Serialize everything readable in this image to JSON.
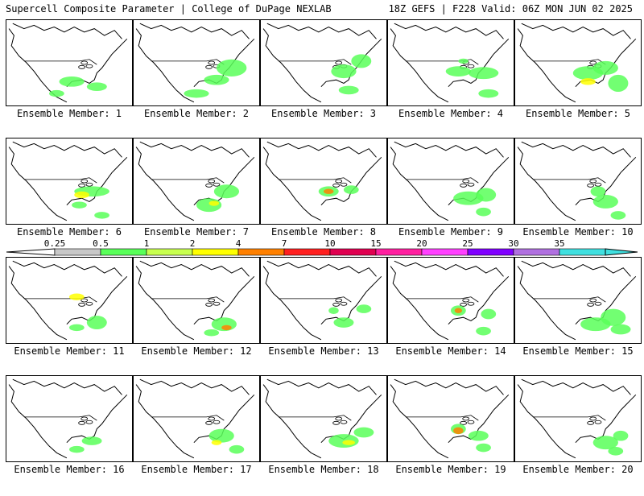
{
  "header": {
    "left": "Supercell Composite Parameter | College of DuPage NEXLAB",
    "right": "18Z GEFS | F228 Valid: 06Z MON JUN 02 2025"
  },
  "caption_prefix": "Ensemble Member:",
  "members": [
    {
      "label": "Ensemble Member: 1",
      "blobs": [
        [
          0.52,
          0.72,
          0.1,
          0.06,
          "#59ff59"
        ],
        [
          0.72,
          0.78,
          0.08,
          0.05,
          "#59ff59"
        ],
        [
          0.4,
          0.86,
          0.06,
          0.04,
          "#59ff59"
        ]
      ]
    },
    {
      "label": "Ensemble Member: 2",
      "blobs": [
        [
          0.78,
          0.56,
          0.12,
          0.1,
          "#59ff59"
        ],
        [
          0.66,
          0.7,
          0.1,
          0.06,
          "#59ff59"
        ],
        [
          0.5,
          0.86,
          0.1,
          0.05,
          "#59ff59"
        ]
      ]
    },
    {
      "label": "Ensemble Member: 3",
      "blobs": [
        [
          0.8,
          0.48,
          0.08,
          0.08,
          "#59ff59"
        ],
        [
          0.66,
          0.6,
          0.1,
          0.08,
          "#59ff59"
        ],
        [
          0.7,
          0.82,
          0.08,
          0.05,
          "#59ff59"
        ]
      ]
    },
    {
      "label": "Ensemble Member: 4",
      "blobs": [
        [
          0.56,
          0.6,
          0.1,
          0.06,
          "#59ff59"
        ],
        [
          0.76,
          0.62,
          0.12,
          0.07,
          "#59ff59"
        ],
        [
          0.8,
          0.86,
          0.08,
          0.05,
          "#59ff59"
        ],
        [
          0.6,
          0.48,
          0.04,
          0.03,
          "#59ff59"
        ]
      ]
    },
    {
      "label": "Ensemble Member: 5",
      "blobs": [
        [
          0.58,
          0.62,
          0.12,
          0.08,
          "#59ff59"
        ],
        [
          0.72,
          0.56,
          0.1,
          0.08,
          "#59ff59"
        ],
        [
          0.82,
          0.74,
          0.08,
          0.1,
          "#59ff59"
        ],
        [
          0.58,
          0.72,
          0.06,
          0.04,
          "#ffff00"
        ]
      ]
    },
    {
      "label": "Ensemble Member: 6",
      "blobs": [
        [
          0.68,
          0.62,
          0.14,
          0.06,
          "#59ff59"
        ],
        [
          0.6,
          0.66,
          0.06,
          0.04,
          "#ffff00"
        ],
        [
          0.58,
          0.78,
          0.06,
          0.04,
          "#59ff59"
        ],
        [
          0.76,
          0.9,
          0.06,
          0.04,
          "#59ff59"
        ]
      ]
    },
    {
      "label": "Ensemble Member: 7",
      "blobs": [
        [
          0.74,
          0.62,
          0.1,
          0.08,
          "#59ff59"
        ],
        [
          0.6,
          0.78,
          0.1,
          0.08,
          "#59ff59"
        ],
        [
          0.64,
          0.76,
          0.04,
          0.03,
          "#ffff00"
        ]
      ]
    },
    {
      "label": "Ensemble Member: 8",
      "blobs": [
        [
          0.54,
          0.62,
          0.08,
          0.06,
          "#59ff59"
        ],
        [
          0.54,
          0.62,
          0.04,
          0.03,
          "#ff8000"
        ],
        [
          0.72,
          0.6,
          0.06,
          0.05,
          "#59ff59"
        ]
      ]
    },
    {
      "label": "Ensemble Member: 9",
      "blobs": [
        [
          0.64,
          0.7,
          0.12,
          0.08,
          "#59ff59"
        ],
        [
          0.78,
          0.66,
          0.08,
          0.08,
          "#59ff59"
        ],
        [
          0.76,
          0.86,
          0.06,
          0.05,
          "#59ff59"
        ]
      ]
    },
    {
      "label": "Ensemble Member: 10",
      "blobs": [
        [
          0.66,
          0.62,
          0.06,
          0.06,
          "#59ff59"
        ],
        [
          0.72,
          0.74,
          0.1,
          0.08,
          "#59ff59"
        ],
        [
          0.82,
          0.9,
          0.06,
          0.05,
          "#59ff59"
        ]
      ]
    },
    {
      "label": "Ensemble Member: 11",
      "blobs": [
        [
          0.56,
          0.46,
          0.06,
          0.04,
          "#ffff00"
        ],
        [
          0.72,
          0.76,
          0.08,
          0.08,
          "#59ff59"
        ],
        [
          0.56,
          0.82,
          0.06,
          0.04,
          "#59ff59"
        ]
      ]
    },
    {
      "label": "Ensemble Member: 12",
      "blobs": [
        [
          0.72,
          0.78,
          0.1,
          0.08,
          "#59ff59"
        ],
        [
          0.74,
          0.82,
          0.04,
          0.03,
          "#ff8000"
        ],
        [
          0.62,
          0.88,
          0.06,
          0.04,
          "#59ff59"
        ]
      ]
    },
    {
      "label": "Ensemble Member: 13",
      "blobs": [
        [
          0.58,
          0.62,
          0.04,
          0.04,
          "#59ff59"
        ],
        [
          0.66,
          0.76,
          0.08,
          0.06,
          "#59ff59"
        ],
        [
          0.82,
          0.6,
          0.06,
          0.05,
          "#59ff59"
        ]
      ]
    },
    {
      "label": "Ensemble Member: 14",
      "blobs": [
        [
          0.56,
          0.62,
          0.06,
          0.06,
          "#59ff59"
        ],
        [
          0.56,
          0.62,
          0.03,
          0.03,
          "#ff8000"
        ],
        [
          0.8,
          0.66,
          0.06,
          0.06,
          "#59ff59"
        ],
        [
          0.76,
          0.86,
          0.06,
          0.05,
          "#59ff59"
        ]
      ]
    },
    {
      "label": "Ensemble Member: 15",
      "blobs": [
        [
          0.64,
          0.78,
          0.12,
          0.08,
          "#59ff59"
        ],
        [
          0.78,
          0.7,
          0.1,
          0.1,
          "#59ff59"
        ],
        [
          0.84,
          0.84,
          0.08,
          0.06,
          "#59ff59"
        ]
      ]
    },
    {
      "label": "Ensemble Member: 16",
      "blobs": [
        [
          0.68,
          0.76,
          0.08,
          0.05,
          "#59ff59"
        ],
        [
          0.56,
          0.86,
          0.06,
          0.04,
          "#59ff59"
        ]
      ]
    },
    {
      "label": "Ensemble Member: 17",
      "blobs": [
        [
          0.7,
          0.7,
          0.1,
          0.08,
          "#59ff59"
        ],
        [
          0.66,
          0.78,
          0.04,
          0.03,
          "#ffff00"
        ],
        [
          0.82,
          0.86,
          0.06,
          0.05,
          "#59ff59"
        ]
      ]
    },
    {
      "label": "Ensemble Member: 18",
      "blobs": [
        [
          0.66,
          0.76,
          0.12,
          0.08,
          "#59ff59"
        ],
        [
          0.7,
          0.78,
          0.05,
          0.03,
          "#ffff00"
        ],
        [
          0.82,
          0.66,
          0.08,
          0.06,
          "#59ff59"
        ]
      ]
    },
    {
      "label": "Ensemble Member: 19",
      "blobs": [
        [
          0.56,
          0.62,
          0.06,
          0.06,
          "#59ff59"
        ],
        [
          0.56,
          0.64,
          0.04,
          0.04,
          "#ff8000"
        ],
        [
          0.72,
          0.7,
          0.08,
          0.06,
          "#59ff59"
        ],
        [
          0.76,
          0.84,
          0.06,
          0.05,
          "#59ff59"
        ]
      ]
    },
    {
      "label": "Ensemble Member: 20",
      "blobs": [
        [
          0.72,
          0.78,
          0.1,
          0.08,
          "#59ff59"
        ],
        [
          0.84,
          0.7,
          0.06,
          0.06,
          "#59ff59"
        ],
        [
          0.8,
          0.88,
          0.06,
          0.05,
          "#59ff59"
        ]
      ]
    }
  ],
  "colorbar": {
    "labels": [
      "0.25",
      "0.5",
      "1",
      "2",
      "4",
      "7",
      "10",
      "15",
      "20",
      "25",
      "30",
      "35"
    ],
    "colors": [
      "#c8c8c8",
      "#59ff59",
      "#c8ff4f",
      "#ffff00",
      "#ff8000",
      "#ff2020",
      "#e00050",
      "#ff20a0",
      "#ff40ff",
      "#8000ff",
      "#b070e0",
      "#40e0e0"
    ]
  }
}
